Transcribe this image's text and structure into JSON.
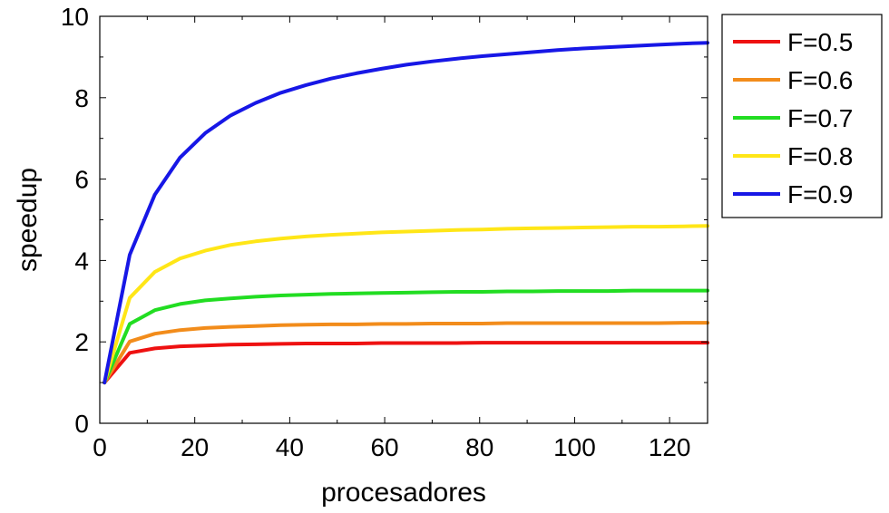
{
  "chart_data": {
    "type": "line",
    "xlabel": "procesadores",
    "ylabel": "speedup",
    "xlim": [
      0,
      128
    ],
    "ylim": [
      0,
      10
    ],
    "xticks": [
      0,
      20,
      40,
      60,
      80,
      100,
      120
    ],
    "yticks": [
      0,
      2,
      4,
      6,
      8,
      10
    ],
    "grid": false,
    "legend": "outside-right",
    "x": [
      1,
      6.3,
      11.6,
      16.9,
      22.2,
      27.5,
      32.8,
      38.1,
      43.4,
      48.7,
      54,
      59.3,
      64.6,
      69.9,
      75.2,
      80.5,
      85.8,
      91.1,
      96.4,
      101.7,
      107,
      112.3,
      117.6,
      122.9,
      128.2
    ],
    "series": [
      {
        "name": "F=0.5",
        "color": "#ee1111",
        "fraction": 0.5,
        "values": [
          1,
          1.73,
          1.84,
          1.89,
          1.91,
          1.93,
          1.94,
          1.95,
          1.96,
          1.96,
          1.96,
          1.97,
          1.97,
          1.97,
          1.97,
          1.98,
          1.98,
          1.98,
          1.98,
          1.98,
          1.98,
          1.98,
          1.98,
          1.98,
          1.98
        ]
      },
      {
        "name": "F=0.6",
        "color": "#f28c1b",
        "fraction": 0.6,
        "values": [
          1,
          2.01,
          2.2,
          2.29,
          2.34,
          2.37,
          2.39,
          2.41,
          2.42,
          2.43,
          2.43,
          2.44,
          2.44,
          2.45,
          2.45,
          2.45,
          2.46,
          2.46,
          2.46,
          2.46,
          2.46,
          2.46,
          2.46,
          2.47,
          2.47
        ]
      },
      {
        "name": "F=0.7",
        "color": "#22dd22",
        "fraction": 0.7,
        "values": [
          1,
          2.44,
          2.78,
          2.93,
          3.02,
          3.07,
          3.11,
          3.14,
          3.16,
          3.18,
          3.19,
          3.2,
          3.21,
          3.22,
          3.23,
          3.23,
          3.24,
          3.24,
          3.25,
          3.25,
          3.25,
          3.26,
          3.26,
          3.26,
          3.26
        ]
      },
      {
        "name": "F=0.8",
        "color": "#ffe617",
        "fraction": 0.8,
        "values": [
          1,
          3.08,
          3.72,
          4.05,
          4.24,
          4.38,
          4.47,
          4.54,
          4.59,
          4.63,
          4.66,
          4.69,
          4.71,
          4.73,
          4.75,
          4.76,
          4.78,
          4.79,
          4.8,
          4.81,
          4.82,
          4.83,
          4.83,
          4.84,
          4.85
        ]
      },
      {
        "name": "F=0.9",
        "color": "#1717e6",
        "fraction": 0.9,
        "values": [
          1,
          4.14,
          5.62,
          6.53,
          7.13,
          7.56,
          7.87,
          8.12,
          8.31,
          8.47,
          8.6,
          8.71,
          8.81,
          8.89,
          8.96,
          9.02,
          9.07,
          9.12,
          9.17,
          9.21,
          9.24,
          9.27,
          9.3,
          9.33,
          9.35
        ]
      }
    ]
  }
}
